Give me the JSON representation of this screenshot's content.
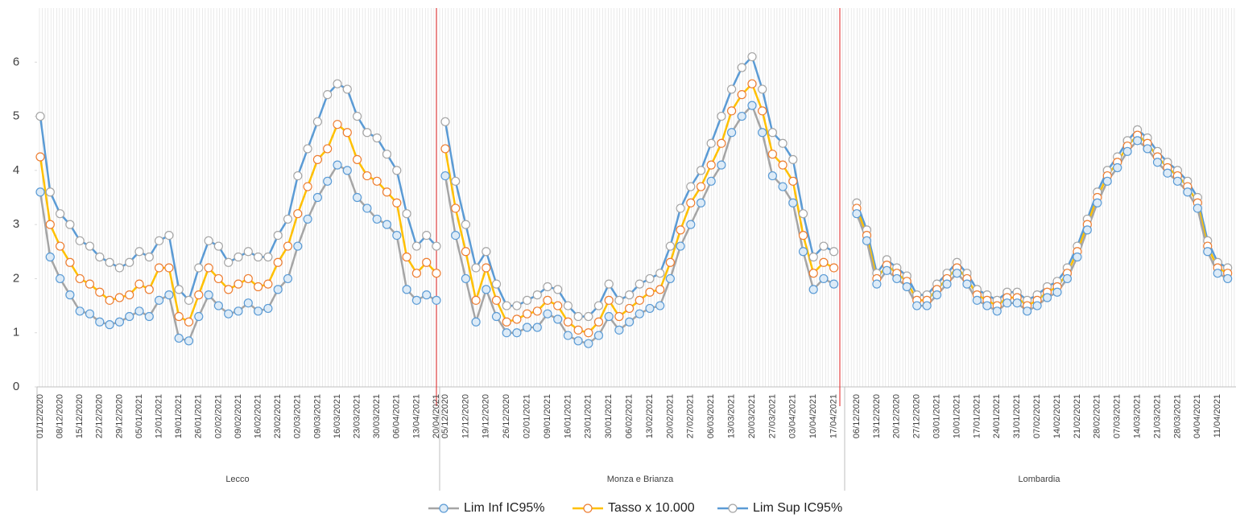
{
  "chart_data": {
    "type": "line",
    "ylim": [
      0,
      7
    ],
    "yticks": [
      0,
      1,
      2,
      3,
      4,
      5,
      6
    ],
    "legend": "bottom",
    "series": [
      {
        "name": "Lim Inf IC95%",
        "color": "#a5a5a5",
        "marker_fill": "#ddebf7",
        "marker_stroke": "#5b9bd5"
      },
      {
        "name": "Tasso x 10.000",
        "color": "#ffc000",
        "marker_fill": "#ffffff",
        "marker_stroke": "#ed7d31"
      },
      {
        "name": "Lim Sup IC95%",
        "color": "#5b9bd5",
        "marker_fill": "#ffffff",
        "marker_stroke": "#a5a5a5"
      }
    ],
    "panels": [
      {
        "name": "Lecco",
        "categories": [
          "01/12/2020",
          null,
          "08/12/2020",
          null,
          "15/12/2020",
          null,
          "22/12/2020",
          null,
          "29/12/2020",
          null,
          "05/01/2021",
          null,
          "12/01/2021",
          null,
          "19/01/2021",
          null,
          "26/01/2021",
          null,
          "02/02/2021",
          null,
          "09/02/2021",
          null,
          "16/02/2021",
          null,
          "23/02/2021",
          null,
          "02/03/2021",
          null,
          "09/03/2021",
          null,
          "16/03/2021",
          null,
          "23/03/2021",
          null,
          "30/03/2021",
          null,
          "06/04/2021",
          null,
          "13/04/2021",
          null,
          "20/04/2021"
        ],
        "series": [
          {
            "values": [
              3.6,
              2.4,
              2.0,
              1.7,
              1.4,
              1.35,
              1.2,
              1.15,
              1.2,
              1.3,
              1.4,
              1.3,
              1.6,
              1.7,
              0.9,
              0.85,
              1.3,
              1.7,
              1.5,
              1.35,
              1.4,
              1.55,
              1.4,
              1.45,
              1.8,
              2.0,
              2.6,
              3.1,
              3.5,
              3.8,
              4.1,
              4.0,
              3.5,
              3.3,
              3.1,
              3.0,
              2.8,
              1.8,
              1.6,
              1.7,
              1.6
            ]
          },
          {
            "values": [
              4.25,
              3.0,
              2.6,
              2.3,
              2.0,
              1.9,
              1.75,
              1.6,
              1.65,
              1.7,
              1.9,
              1.8,
              2.2,
              2.2,
              1.3,
              1.2,
              1.7,
              2.2,
              2.0,
              1.8,
              1.9,
              2.0,
              1.85,
              1.9,
              2.3,
              2.6,
              3.2,
              3.7,
              4.2,
              4.4,
              4.85,
              4.7,
              4.2,
              3.9,
              3.8,
              3.6,
              3.4,
              2.4,
              2.1,
              2.3,
              2.1
            ]
          },
          {
            "values": [
              5.0,
              3.6,
              3.2,
              3.0,
              2.7,
              2.6,
              2.4,
              2.3,
              2.2,
              2.3,
              2.5,
              2.4,
              2.7,
              2.8,
              1.8,
              1.6,
              2.2,
              2.7,
              2.6,
              2.3,
              2.4,
              2.5,
              2.4,
              2.4,
              2.8,
              3.1,
              3.9,
              4.4,
              4.9,
              5.4,
              5.6,
              5.5,
              5.0,
              4.7,
              4.6,
              4.3,
              4.0,
              3.2,
              2.6,
              2.8,
              2.6
            ]
          }
        ]
      },
      {
        "name": "Monza e Brianza",
        "categories": [
          "05/12/2020",
          null,
          "12/12/2020",
          null,
          "19/12/2020",
          null,
          "26/12/2020",
          null,
          "02/01/2021",
          null,
          "09/01/2021",
          null,
          "16/01/2021",
          null,
          "23/01/2021",
          null,
          "30/01/2021",
          null,
          "06/02/2021",
          null,
          "13/02/2021",
          null,
          "20/02/2021",
          null,
          "27/02/2021",
          null,
          "06/03/2021",
          null,
          "13/03/2021",
          null,
          "20/03/2021",
          null,
          "27/03/2021",
          null,
          "03/04/2021",
          null,
          "10/04/2021",
          null,
          "17/04/2021"
        ],
        "series": [
          {
            "values": [
              3.9,
              2.8,
              2.0,
              1.2,
              1.8,
              1.3,
              1.0,
              1.0,
              1.1,
              1.1,
              1.35,
              1.25,
              0.95,
              0.85,
              0.8,
              0.95,
              1.3,
              1.05,
              1.2,
              1.35,
              1.45,
              1.5,
              2.0,
              2.6,
              3.0,
              3.4,
              3.8,
              4.1,
              4.7,
              5.0,
              5.2,
              4.7,
              3.9,
              3.7,
              3.4,
              2.5,
              1.8,
              2.0,
              1.9
            ]
          },
          {
            "values": [
              4.4,
              3.3,
              2.5,
              1.6,
              2.2,
              1.6,
              1.2,
              1.25,
              1.35,
              1.4,
              1.6,
              1.5,
              1.2,
              1.05,
              1.0,
              1.2,
              1.6,
              1.3,
              1.45,
              1.6,
              1.75,
              1.8,
              2.3,
              2.9,
              3.4,
              3.7,
              4.1,
              4.5,
              5.1,
              5.4,
              5.6,
              5.1,
              4.3,
              4.1,
              3.8,
              2.8,
              2.1,
              2.3,
              2.2
            ]
          },
          {
            "values": [
              4.9,
              3.8,
              3.0,
              2.2,
              2.5,
              1.9,
              1.5,
              1.5,
              1.6,
              1.7,
              1.85,
              1.8,
              1.5,
              1.3,
              1.3,
              1.5,
              1.9,
              1.6,
              1.7,
              1.9,
              2.0,
              2.1,
              2.6,
              3.3,
              3.7,
              4.0,
              4.5,
              5.0,
              5.5,
              5.9,
              6.1,
              5.5,
              4.7,
              4.5,
              4.2,
              3.2,
              2.4,
              2.6,
              2.5
            ]
          }
        ]
      },
      {
        "name": "Lombardia",
        "categories": [
          "06/12/2020",
          null,
          "13/12/2020",
          null,
          "20/12/2020",
          null,
          "27/12/2020",
          null,
          "03/01/2021",
          null,
          "10/01/2021",
          null,
          "17/01/2021",
          null,
          "24/01/2021",
          null,
          "31/01/2021",
          null,
          "07/02/2021",
          null,
          "14/02/2021",
          null,
          "21/02/2021",
          null,
          "28/02/2021",
          null,
          "07/03/2021",
          null,
          "14/03/2021",
          null,
          "21/03/2021",
          null,
          "28/03/2021",
          null,
          "04/04/2021",
          null,
          "11/04/2021",
          null
        ],
        "series": [
          {
            "values": [
              3.2,
              2.7,
              1.9,
              2.15,
              2.0,
              1.85,
              1.5,
              1.5,
              1.7,
              1.9,
              2.1,
              1.9,
              1.6,
              1.5,
              1.4,
              1.55,
              1.55,
              1.4,
              1.5,
              1.65,
              1.75,
              2.0,
              2.4,
              2.9,
              3.4,
              3.8,
              4.05,
              4.35,
              4.55,
              4.4,
              4.15,
              3.95,
              3.8,
              3.6,
              3.3,
              2.5,
              2.1,
              2.0
            ]
          },
          {
            "values": [
              3.3,
              2.8,
              2.0,
              2.25,
              2.1,
              1.95,
              1.6,
              1.6,
              1.8,
              2.0,
              2.2,
              2.0,
              1.7,
              1.6,
              1.5,
              1.65,
              1.65,
              1.5,
              1.6,
              1.75,
              1.85,
              2.1,
              2.5,
              3.0,
              3.5,
              3.9,
              4.15,
              4.45,
              4.65,
              4.5,
              4.25,
              4.05,
              3.9,
              3.7,
              3.4,
              2.6,
              2.2,
              2.1
            ]
          },
          {
            "values": [
              3.4,
              2.9,
              2.1,
              2.35,
              2.2,
              2.05,
              1.7,
              1.7,
              1.9,
              2.1,
              2.3,
              2.1,
              1.8,
              1.7,
              1.6,
              1.75,
              1.75,
              1.6,
              1.7,
              1.85,
              1.95,
              2.2,
              2.6,
              3.1,
              3.6,
              4.0,
              4.25,
              4.55,
              4.75,
              4.6,
              4.35,
              4.15,
              4.0,
              3.8,
              3.5,
              2.7,
              2.3,
              2.2
            ]
          }
        ]
      }
    ]
  }
}
